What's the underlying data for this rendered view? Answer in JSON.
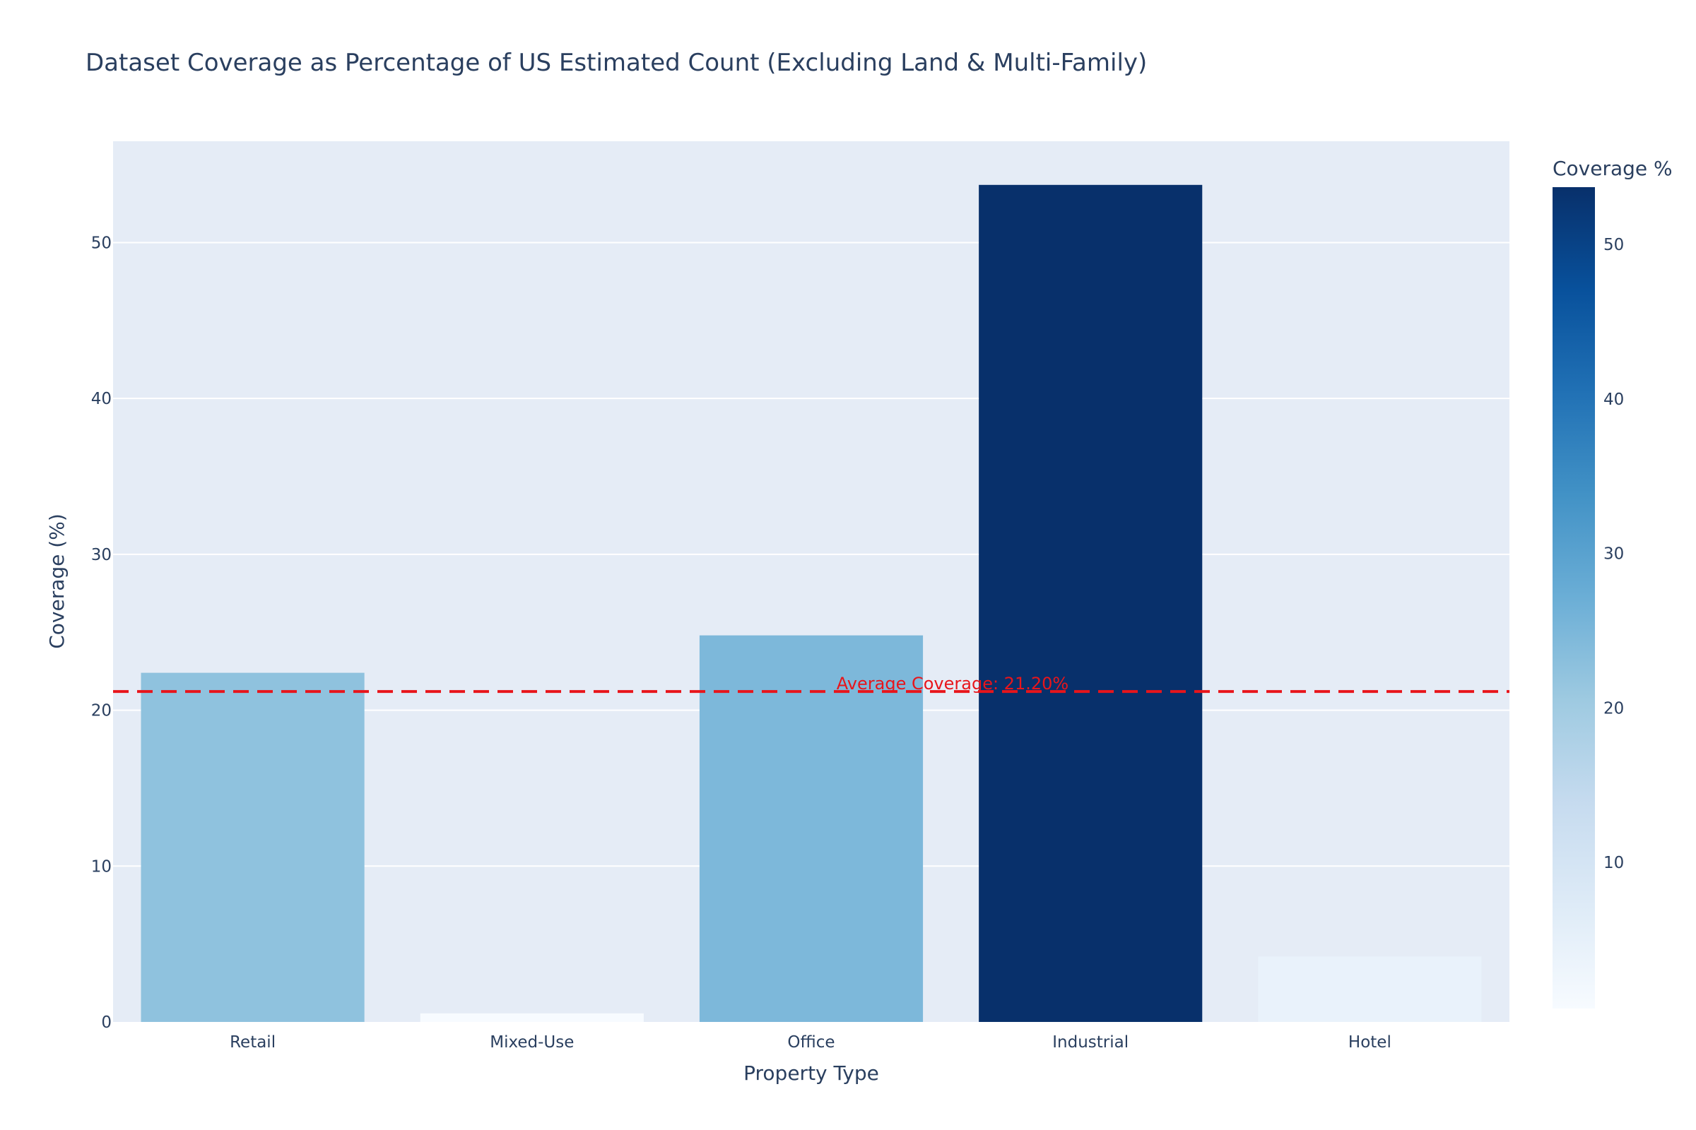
{
  "chart_data": {
    "type": "bar",
    "title": "Dataset Coverage as Percentage of US Estimated Count (Excluding Land & Multi-Family)",
    "xlabel": "Property Type",
    "ylabel": "Coverage (%)",
    "categories": [
      "Retail",
      "Mixed-Use",
      "Office",
      "Industrial",
      "Hotel"
    ],
    "values": [
      22.4,
      0.55,
      24.8,
      53.7,
      4.2
    ],
    "ylim": [
      0,
      56.5
    ],
    "y_ticks": [
      0,
      10,
      20,
      30,
      40,
      50
    ],
    "grid": true,
    "reference_line": {
      "value": 21.2,
      "label": "Average Coverage: 21.20%",
      "color": "#e8151b",
      "style": "dashed"
    },
    "colorbar": {
      "title": "Coverage %",
      "range": [
        0.55,
        53.7
      ],
      "ticks": [
        10,
        20,
        30,
        40,
        50
      ],
      "colorscale": [
        "#f7fbff",
        "#deebf7",
        "#c6dbef",
        "#9ecae1",
        "#6baed6",
        "#4292c6",
        "#2171b5",
        "#08519c",
        "#08306b"
      ]
    },
    "colors": {
      "plot_background": "#e5ecf6",
      "grid": "#ffffff",
      "text": "#2a3f5f"
    }
  }
}
